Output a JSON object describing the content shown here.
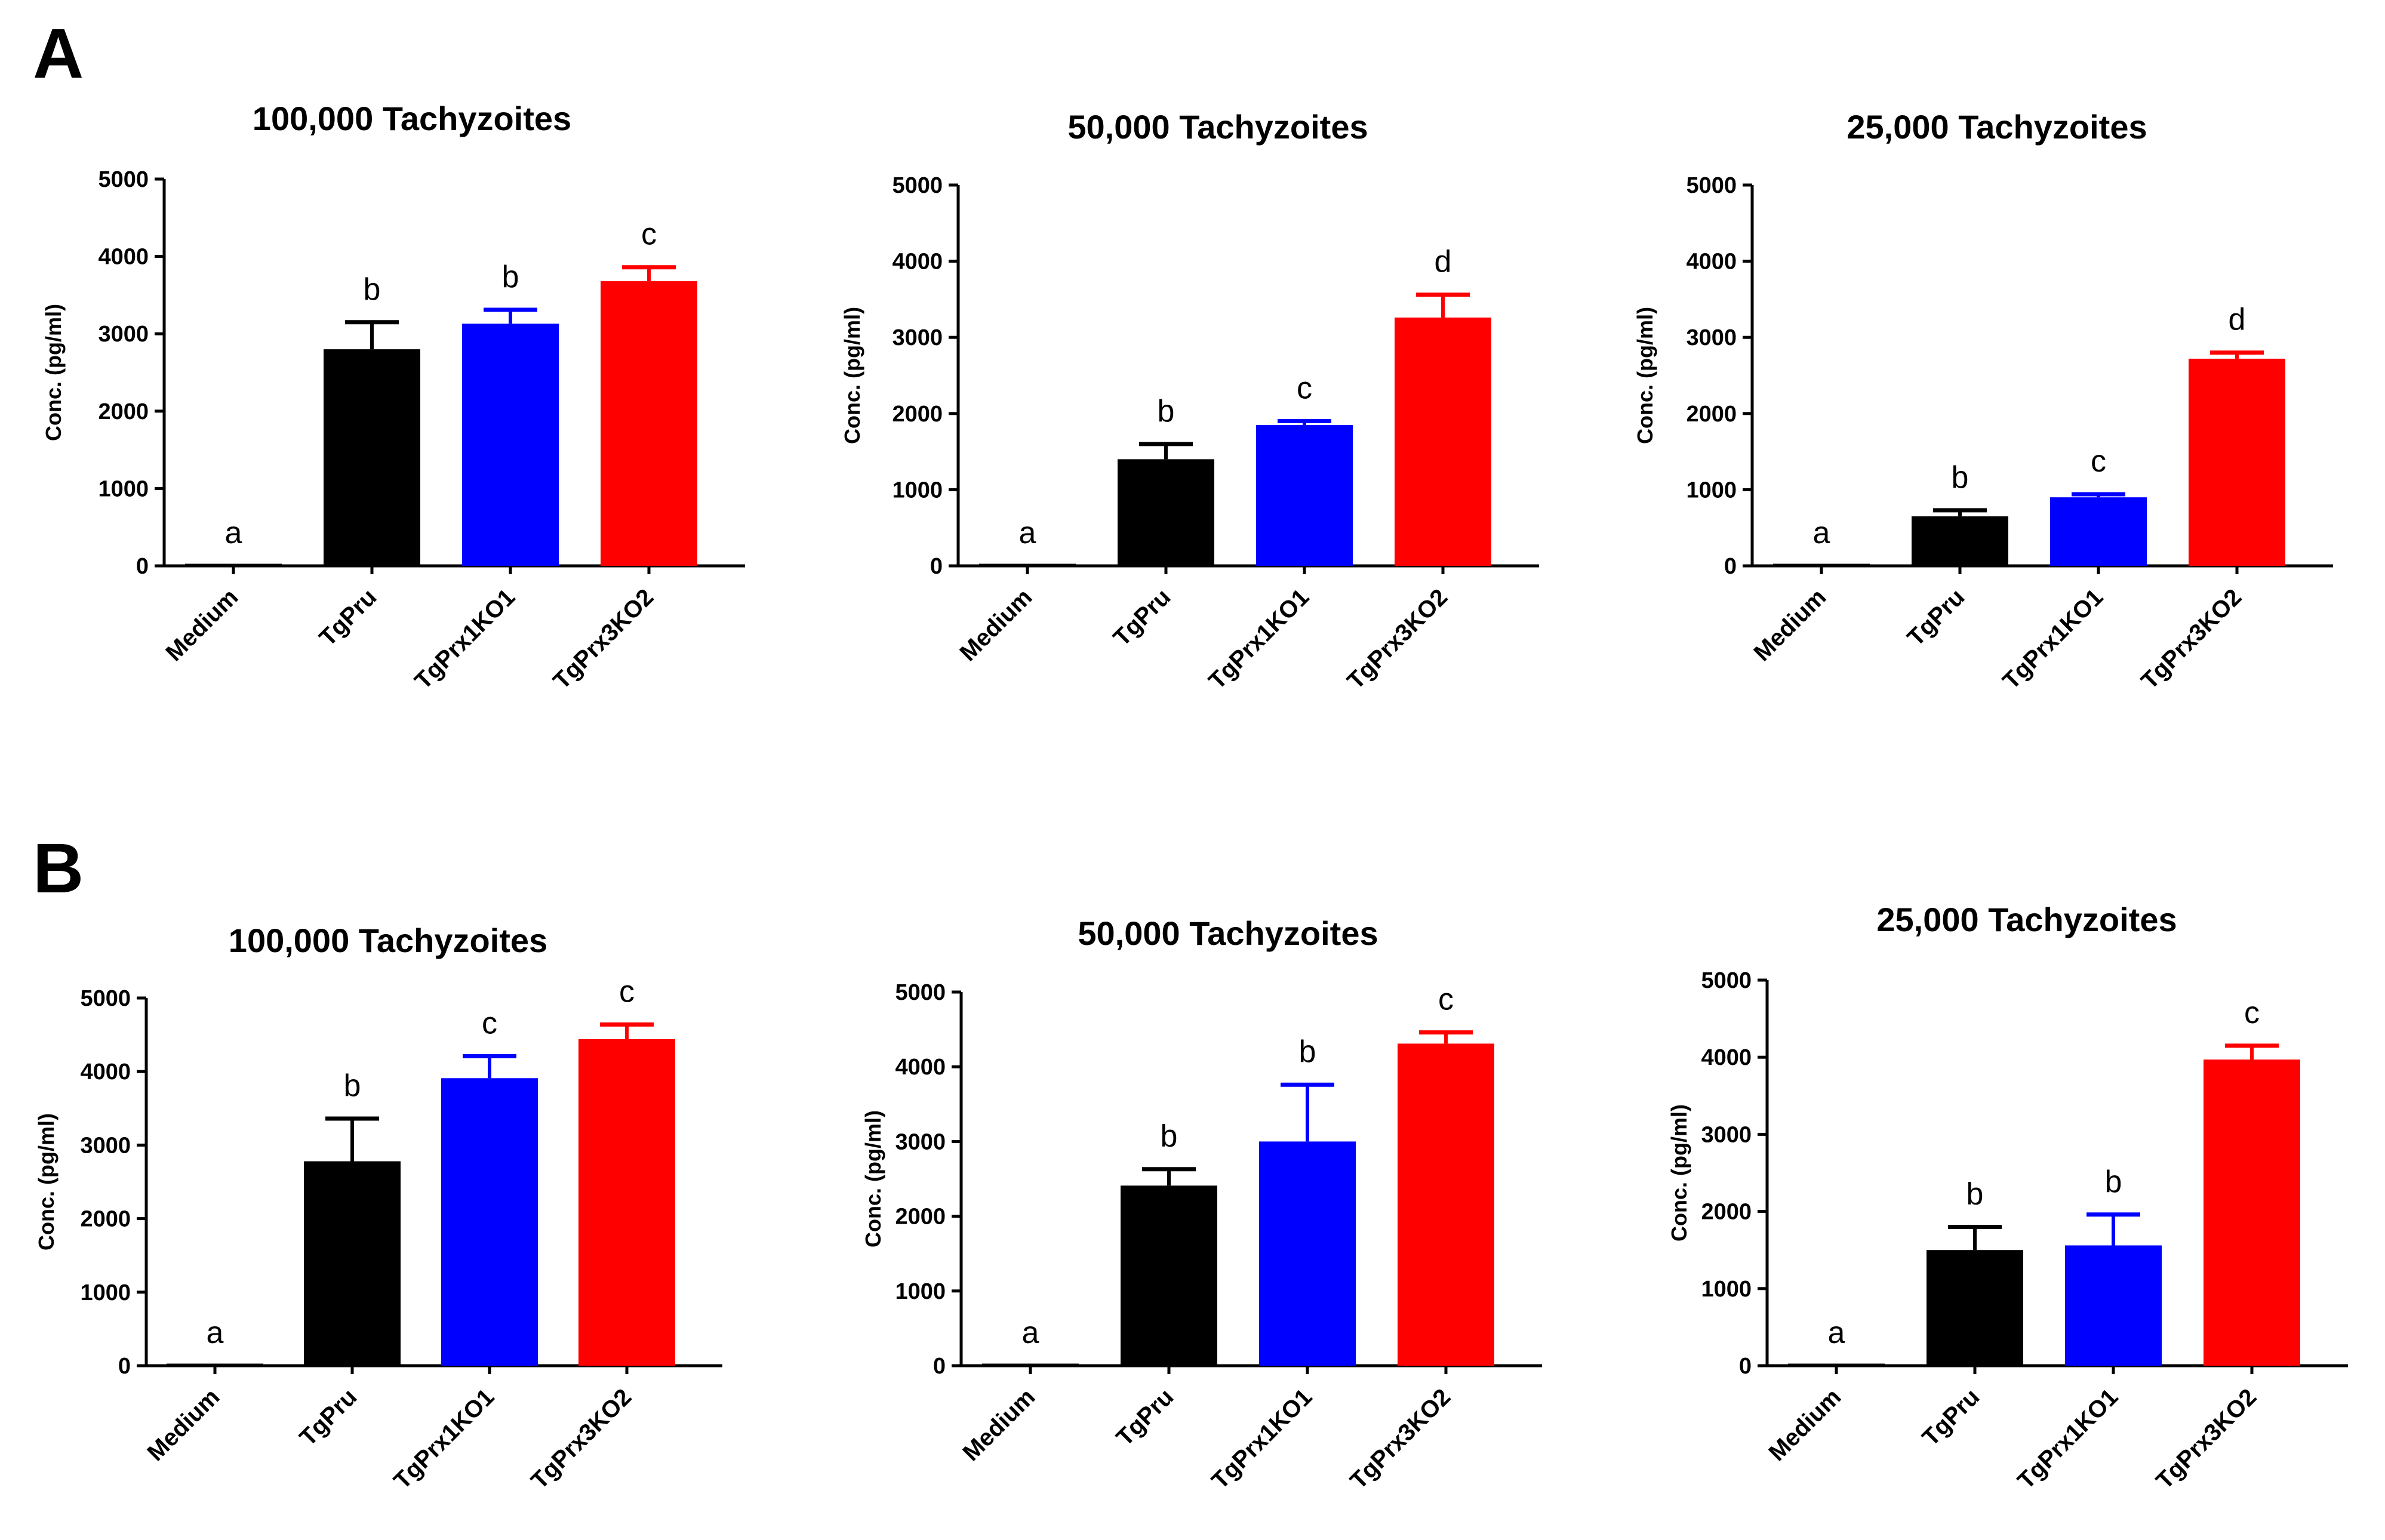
{
  "panels": [
    {
      "label": "A"
    },
    {
      "label": "B"
    }
  ],
  "chart_data": [
    {
      "panel": "A",
      "type": "bar",
      "title": "100,000 Tachyzoites",
      "xlabel": "",
      "ylabel": "Conc. (pg/ml)",
      "ylim": [
        0,
        5000
      ],
      "yticks": [
        "0",
        "1000",
        "2000",
        "3000",
        "4000",
        "5000"
      ],
      "categories": [
        "Medium",
        "TgPru",
        "TgPrx1KO1",
        "TgPrx3KO2"
      ],
      "values": [
        0,
        2800,
        3130,
        3680
      ],
      "errors": [
        0,
        350,
        180,
        180
      ],
      "colors": [
        "#000000",
        "#000000",
        "#0000ff",
        "#ff0000"
      ],
      "significance": [
        "a",
        "b",
        "b",
        "c"
      ]
    },
    {
      "panel": "A",
      "type": "bar",
      "title": "50,000 Tachyzoites",
      "xlabel": "",
      "ylabel": "Conc. (pg/ml)",
      "ylim": [
        0,
        5000
      ],
      "yticks": [
        "0",
        "1000",
        "2000",
        "3000",
        "4000",
        "5000"
      ],
      "categories": [
        "Medium",
        "TgPru",
        "TgPrx1KO1",
        "TgPrx3KO2"
      ],
      "values": [
        0,
        1400,
        1850,
        3260
      ],
      "errors": [
        0,
        200,
        50,
        300
      ],
      "colors": [
        "#000000",
        "#000000",
        "#0000ff",
        "#ff0000"
      ],
      "significance": [
        "a",
        "b",
        "c",
        "d"
      ]
    },
    {
      "panel": "A",
      "type": "bar",
      "title": "25,000 Tachyzoites",
      "xlabel": "",
      "ylabel": "Conc. (pg/ml)",
      "ylim": [
        0,
        5000
      ],
      "yticks": [
        "0",
        "1000",
        "2000",
        "3000",
        "4000",
        "5000"
      ],
      "categories": [
        "Medium",
        "TgPru",
        "TgPrx1KO1",
        "TgPrx3KO2"
      ],
      "values": [
        0,
        650,
        900,
        2720
      ],
      "errors": [
        0,
        80,
        40,
        80
      ],
      "colors": [
        "#000000",
        "#000000",
        "#0000ff",
        "#ff0000"
      ],
      "significance": [
        "a",
        "b",
        "c",
        "d"
      ]
    },
    {
      "panel": "B",
      "type": "bar",
      "title": "100,000 Tachyzoites",
      "xlabel": "",
      "ylabel": "Conc. (pg/ml)",
      "ylim": [
        0,
        5000
      ],
      "yticks": [
        "0",
        "1000",
        "2000",
        "3000",
        "4000",
        "5000"
      ],
      "categories": [
        "Medium",
        "TgPru",
        "TgPrx1KO1",
        "TgPrx3KO2"
      ],
      "values": [
        0,
        2780,
        3910,
        4440
      ],
      "errors": [
        0,
        580,
        300,
        200
      ],
      "colors": [
        "#000000",
        "#000000",
        "#0000ff",
        "#ff0000"
      ],
      "significance": [
        "a",
        "b",
        "c",
        "c"
      ]
    },
    {
      "panel": "B",
      "type": "bar",
      "title": "50,000 Tachyzoites",
      "xlabel": "",
      "ylabel": "Conc. (pg/ml)",
      "ylim": [
        0,
        5000
      ],
      "yticks": [
        "0",
        "1000",
        "2000",
        "3000",
        "4000",
        "5000"
      ],
      "categories": [
        "Medium",
        "TgPru",
        "TgPrx1KO1",
        "TgPrx3KO2"
      ],
      "values": [
        0,
        2410,
        3000,
        4310
      ],
      "errors": [
        0,
        220,
        760,
        150
      ],
      "colors": [
        "#000000",
        "#000000",
        "#0000ff",
        "#ff0000"
      ],
      "significance": [
        "a",
        "b",
        "b",
        "c"
      ]
    },
    {
      "panel": "B",
      "type": "bar",
      "title": "25,000 Tachyzoites",
      "xlabel": "",
      "ylabel": "Conc. (pg/ml)",
      "ylim": [
        0,
        5000
      ],
      "yticks": [
        "0",
        "1000",
        "2000",
        "3000",
        "4000",
        "5000"
      ],
      "categories": [
        "Medium",
        "TgPru",
        "TgPrx1KO1",
        "TgPrx3KO2"
      ],
      "values": [
        0,
        1500,
        1560,
        3970
      ],
      "errors": [
        0,
        300,
        400,
        180
      ],
      "colors": [
        "#000000",
        "#000000",
        "#0000ff",
        "#ff0000"
      ],
      "significance": [
        "a",
        "b",
        "b",
        "c"
      ]
    }
  ]
}
